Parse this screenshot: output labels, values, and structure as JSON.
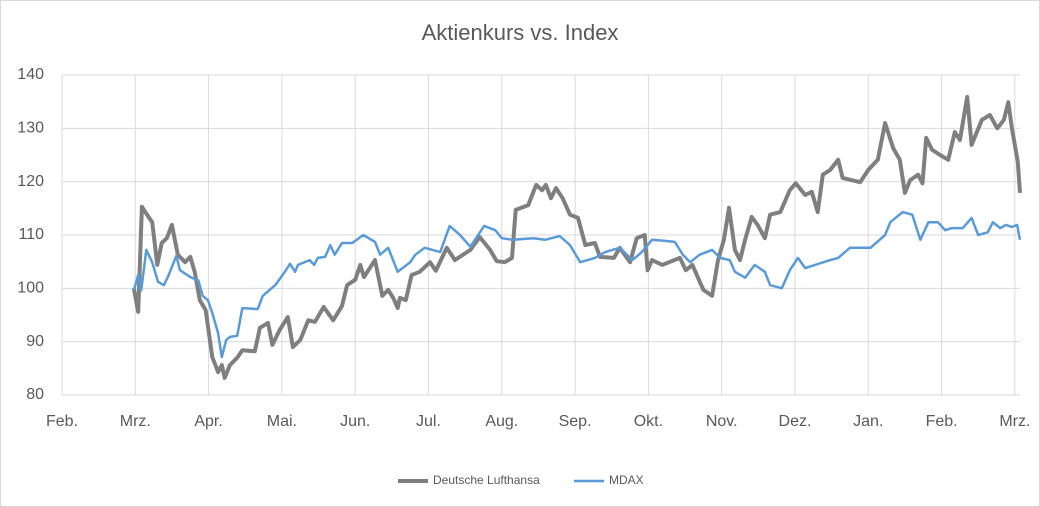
{
  "chart_data": {
    "type": "line",
    "title": "Aktienkurs vs. Index",
    "xlim": [
      0,
      13.07
    ],
    "xticks": [
      {
        "value": 0,
        "label": "Feb."
      },
      {
        "value": 1,
        "label": "Mrz."
      },
      {
        "value": 2,
        "label": "Apr."
      },
      {
        "value": 3,
        "label": "Mai."
      },
      {
        "value": 4,
        "label": "Jun."
      },
      {
        "value": 5,
        "label": "Jul."
      },
      {
        "value": 6,
        "label": "Aug."
      },
      {
        "value": 7,
        "label": "Sep."
      },
      {
        "value": 8,
        "label": "Okt."
      },
      {
        "value": 9,
        "label": "Nov."
      },
      {
        "value": 10,
        "label": "Dez."
      },
      {
        "value": 11,
        "label": "Jan."
      },
      {
        "value": 12,
        "label": "Feb."
      },
      {
        "value": 13,
        "label": "Mrz."
      }
    ],
    "ylim": [
      80,
      140
    ],
    "yticks": [
      80,
      90,
      100,
      110,
      120,
      130,
      140
    ],
    "grid": true,
    "legend": "bottom",
    "series": [
      {
        "name": "Deutsche Lufthansa",
        "color": "#7f7f7f",
        "x": [
          0.98,
          1.04,
          1.09,
          1.16,
          1.23,
          1.3,
          1.36,
          1.43,
          1.5,
          1.58,
          1.68,
          1.75,
          1.81,
          1.88,
          1.96,
          2.05,
          2.13,
          2.18,
          2.22,
          2.29,
          2.39,
          2.46,
          2.63,
          2.7,
          2.81,
          2.87,
          2.97,
          3.08,
          3.15,
          3.25,
          3.36,
          3.45,
          3.57,
          3.7,
          3.82,
          3.89,
          4.0,
          4.07,
          4.12,
          4.27,
          4.37,
          4.45,
          4.52,
          4.58,
          4.61,
          4.69,
          4.77,
          4.88,
          5.02,
          5.1,
          5.25,
          5.36,
          5.57,
          5.7,
          5.84,
          5.93,
          6.04,
          6.14,
          6.19,
          6.36,
          6.47,
          6.55,
          6.6,
          6.67,
          6.74,
          6.83,
          6.93,
          7.04,
          7.14,
          7.27,
          7.34,
          7.53,
          7.61,
          7.75,
          7.84,
          7.95,
          7.99,
          8.05,
          8.19,
          8.43,
          8.51,
          8.6,
          8.75,
          8.87,
          8.95,
          9.03,
          9.1,
          9.18,
          9.25,
          9.32,
          9.41,
          9.49,
          9.59,
          9.66,
          9.8,
          9.93,
          10.01,
          10.14,
          10.23,
          10.31,
          10.38,
          10.48,
          10.59,
          10.65,
          10.89,
          11.0,
          11.13,
          11.23,
          11.34,
          11.43,
          11.5,
          11.57,
          11.68,
          11.74,
          11.79,
          11.87,
          11.98,
          12.09,
          12.18,
          12.25,
          12.35,
          12.41,
          12.55,
          12.66,
          12.76,
          12.85,
          12.91,
          12.96,
          13.04,
          13.07
        ],
        "values": [
          100,
          95.6,
          115.3,
          113.8,
          112.4,
          104.4,
          108.5,
          109.4,
          111.9,
          106.3,
          104.9,
          105.9,
          103.1,
          97.8,
          95.9,
          87.1,
          84.3,
          85.6,
          83.2,
          85.6,
          87,
          88.4,
          88.2,
          92.6,
          93.5,
          89.4,
          92.2,
          94.6,
          89,
          90.3,
          94,
          93.7,
          96.5,
          94,
          96.7,
          100.6,
          101.6,
          104.4,
          102.1,
          105.3,
          98.6,
          99.7,
          98.2,
          96.3,
          98.2,
          97.8,
          102.5,
          103.1,
          104.9,
          103.3,
          107.6,
          105.3,
          107.2,
          109.6,
          107.2,
          105.1,
          104.9,
          105.7,
          114.7,
          115.6,
          119.4,
          118.4,
          119.4,
          116.9,
          118.8,
          116.9,
          113.8,
          113.2,
          108.1,
          108.5,
          105.9,
          105.7,
          107.6,
          104.9,
          109.4,
          110,
          103.4,
          105.3,
          104.4,
          105.7,
          103.4,
          104.4,
          99.7,
          98.6,
          105.3,
          109.1,
          115.1,
          107.2,
          105.3,
          109.1,
          113.4,
          111.9,
          109.4,
          113.8,
          114.3,
          118.4,
          119.7,
          117.5,
          118.1,
          114.3,
          121.3,
          122.2,
          124.1,
          120.7,
          119.9,
          122.2,
          124.1,
          131,
          126.3,
          124.1,
          117.9,
          120.3,
          121.3,
          119.7,
          128.2,
          126,
          125,
          124.1,
          129.3,
          127.8,
          135.9,
          126.9,
          131.6,
          132.5,
          130,
          131.6,
          134.9,
          130,
          123.7,
          117.9
        ]
      },
      {
        "name": "MDAX",
        "color": "#5b9bd5",
        "x": [
          0.98,
          1.04,
          1.08,
          1.15,
          1.23,
          1.31,
          1.39,
          1.45,
          1.56,
          1.61,
          1.75,
          1.86,
          1.92,
          1.99,
          2.05,
          2.13,
          2.18,
          2.24,
          2.29,
          2.39,
          2.46,
          2.67,
          2.74,
          2.91,
          3.04,
          3.11,
          3.18,
          3.22,
          3.38,
          3.44,
          3.49,
          3.59,
          3.66,
          3.72,
          3.82,
          3.96,
          4.11,
          4.27,
          4.34,
          4.45,
          4.58,
          4.75,
          4.82,
          4.95,
          5.16,
          5.29,
          5.43,
          5.57,
          5.76,
          5.91,
          6.0,
          6.15,
          6.43,
          6.59,
          6.79,
          6.93,
          7.07,
          7.27,
          7.41,
          7.61,
          7.78,
          7.91,
          8.05,
          8.23,
          8.36,
          8.47,
          8.57,
          8.7,
          8.87,
          8.98,
          9.11,
          9.18,
          9.32,
          9.45,
          9.59,
          9.66,
          9.82,
          9.93,
          10.04,
          10.14,
          10.48,
          10.59,
          10.75,
          11.03,
          11.23,
          11.3,
          11.47,
          11.6,
          11.71,
          11.82,
          11.95,
          12.05,
          12.14,
          12.29,
          12.41,
          12.5,
          12.63,
          12.7,
          12.8,
          12.88,
          12.96,
          13.03,
          13.07
        ],
        "values": [
          99.6,
          102.5,
          99.6,
          107.2,
          104.9,
          101.2,
          100.6,
          102.3,
          106.1,
          103.4,
          102.1,
          101.5,
          98.6,
          97.8,
          95.4,
          91.6,
          87.1,
          90.3,
          90.9,
          91.1,
          96.3,
          96.1,
          98.6,
          100.6,
          103.1,
          104.6,
          103.1,
          104.4,
          105.3,
          104.4,
          105.7,
          105.9,
          108.1,
          106.3,
          108.5,
          108.5,
          110,
          108.7,
          106.3,
          107.6,
          103.1,
          104.9,
          106.3,
          107.6,
          106.8,
          111.7,
          110,
          107.8,
          111.7,
          110.9,
          109.4,
          109.1,
          109.4,
          109.1,
          109.8,
          108.1,
          104.9,
          105.7,
          106.8,
          107.6,
          105.3,
          106.8,
          109.1,
          108.9,
          108.7,
          106.3,
          104.9,
          106.3,
          107.2,
          105.7,
          105.3,
          103.1,
          102,
          104.4,
          103.1,
          100.6,
          100,
          103.4,
          105.7,
          103.8,
          105.3,
          105.7,
          107.6,
          107.6,
          110,
          112.4,
          114.3,
          113.8,
          109.1,
          112.4,
          112.4,
          110.9,
          111.3,
          111.3,
          113.2,
          110,
          110.5,
          112.4,
          111.3,
          111.9,
          111.5,
          111.9,
          109.1
        ]
      }
    ]
  }
}
